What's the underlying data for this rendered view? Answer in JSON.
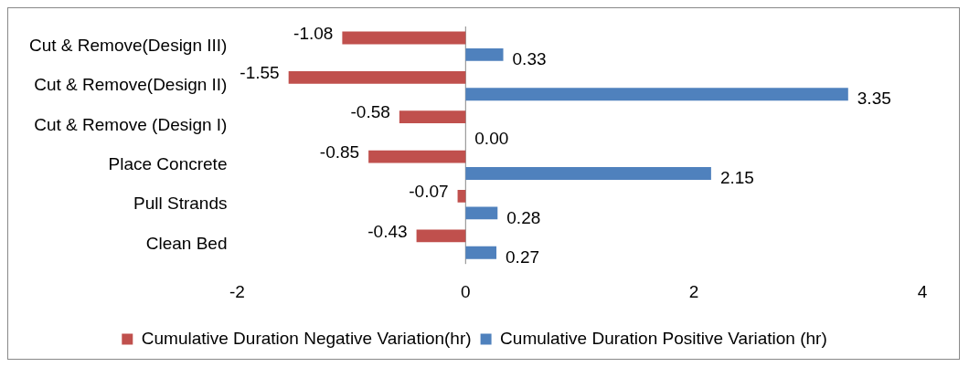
{
  "chart_data": {
    "type": "bar",
    "orientation": "horizontal",
    "categories": [
      "Cut & Remove(Design III)",
      "Cut & Remove(Design II)",
      "Cut & Remove (Design I)",
      "Place Concrete",
      "Pull Strands",
      "Clean Bed"
    ],
    "series": [
      {
        "name": "Cumulative Duration Negative Variation(hr)",
        "color": "#c0504d",
        "values": [
          -1.08,
          -1.55,
          -0.58,
          -0.85,
          -0.07,
          -0.43
        ],
        "value_labels": [
          "-1.08",
          "-1.55",
          "-0.58",
          "-0.85",
          "-0.07",
          "-0.43"
        ]
      },
      {
        "name": "Cumulative Duration Positive Variation (hr)",
        "color": "#4f81bd",
        "values": [
          0.33,
          3.35,
          0,
          2.15,
          0.28,
          0.27
        ],
        "value_labels": [
          "0.33",
          "3.35",
          "0.00",
          "2.15",
          "0.28",
          "0.27"
        ]
      }
    ],
    "ref_lines": [
      {
        "axis": "x",
        "value": 0,
        "color": "#868686"
      }
    ],
    "xlim": [
      -2,
      4
    ],
    "xticks": [
      -2,
      0,
      2,
      4
    ],
    "grid": false,
    "legend": "bottom"
  }
}
